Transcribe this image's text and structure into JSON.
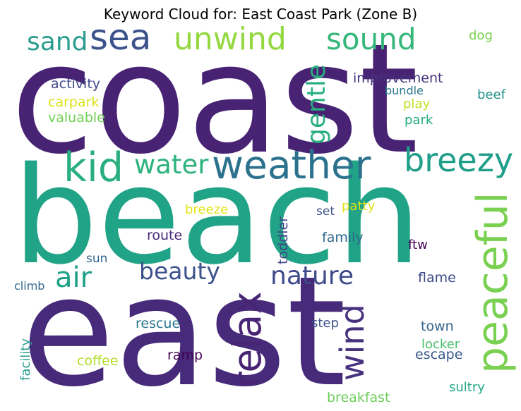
{
  "chart_data": {
    "type": "wordcloud",
    "title": "Keyword Cloud for: East Coast Park (Zone B)",
    "words": [
      {
        "text": "coast",
        "color": "#482374"
      },
      {
        "text": "beach",
        "color": "#20A386"
      },
      {
        "text": "east",
        "color": "#472A7A"
      },
      {
        "text": "sea",
        "color": "#3B528B"
      },
      {
        "text": "unwind",
        "color": "#94D840"
      },
      {
        "text": "sound",
        "color": "#35B779"
      },
      {
        "text": "sand",
        "color": "#2A9D8F"
      },
      {
        "text": "dog",
        "color": "#7AD151"
      },
      {
        "text": "gentle",
        "color": "#29AF7F"
      },
      {
        "text": "improvement",
        "color": "#46337E"
      },
      {
        "text": "bundle",
        "color": "#2A788E"
      },
      {
        "text": "activity",
        "color": "#3E4A89"
      },
      {
        "text": "carpark",
        "color": "#DDE318"
      },
      {
        "text": "valuable",
        "color": "#73D055"
      },
      {
        "text": "play",
        "color": "#C2DF23"
      },
      {
        "text": "beef",
        "color": "#21918C"
      },
      {
        "text": "park",
        "color": "#25AB82"
      },
      {
        "text": "kid",
        "color": "#29AF7F"
      },
      {
        "text": "water",
        "color": "#2DB27D"
      },
      {
        "text": "weather",
        "color": "#2C728E"
      },
      {
        "text": "breezy",
        "color": "#1F9E89"
      },
      {
        "text": "peaceful",
        "color": "#7AD151"
      },
      {
        "text": "breeze",
        "color": "#E5E419"
      },
      {
        "text": "patty",
        "color": "#DDE318"
      },
      {
        "text": "set",
        "color": "#3B528B"
      },
      {
        "text": "toddler",
        "color": "#414487"
      },
      {
        "text": "route",
        "color": "#482878"
      },
      {
        "text": "family",
        "color": "#31688E"
      },
      {
        "text": "ftw",
        "color": "#440154"
      },
      {
        "text": "sun",
        "color": "#33638D"
      },
      {
        "text": "air",
        "color": "#1FA188"
      },
      {
        "text": "beauty",
        "color": "#3B528B"
      },
      {
        "text": "relax",
        "color": "#482475"
      },
      {
        "text": "nature",
        "color": "#3E4A89"
      },
      {
        "text": "climb",
        "color": "#31688E"
      },
      {
        "text": "flame",
        "color": "#3E4989"
      },
      {
        "text": "facility",
        "color": "#2A9D8F"
      },
      {
        "text": "rescue",
        "color": "#2A788E"
      },
      {
        "text": "wind",
        "color": "#46327E"
      },
      {
        "text": "step",
        "color": "#3B528B"
      },
      {
        "text": "town",
        "color": "#33638D"
      },
      {
        "text": "locker",
        "color": "#4AC16D"
      },
      {
        "text": "coffee",
        "color": "#B5DE2B"
      },
      {
        "text": "ramp",
        "color": "#440154"
      },
      {
        "text": "escape",
        "color": "#38598C"
      },
      {
        "text": "sultry",
        "color": "#22A884"
      },
      {
        "text": "breakfast",
        "color": "#6CCE59"
      }
    ]
  }
}
